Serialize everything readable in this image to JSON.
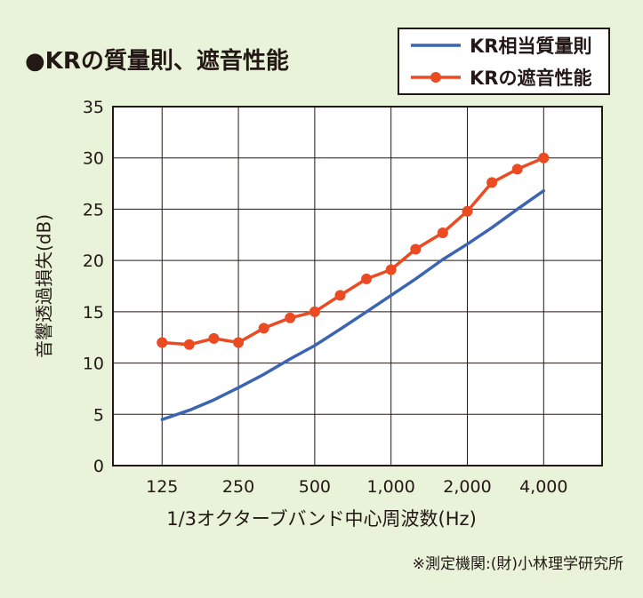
{
  "title": "●KRの質量則、遮音性能",
  "note": "※測定機関:(財)小林理学研究所",
  "colors": {
    "background": "#e9f3d9",
    "series_blue": "#3b64b3",
    "series_red": "#ea4b23"
  },
  "chart_data": {
    "type": "line",
    "xlabel": "1/3オクターブバンド中心周波数(Hz)",
    "ylabel": "音響透過損失(dB)",
    "x_scale": "log",
    "xlim": [
      80,
      6800
    ],
    "ylim": [
      0,
      35
    ],
    "yticks": [
      0,
      5,
      10,
      15,
      20,
      25,
      30,
      35
    ],
    "xticks": [
      125,
      250,
      500,
      1000,
      2000,
      4000
    ],
    "xtick_labels": [
      "125",
      "250",
      "500",
      "1,000",
      "2,000",
      "4,000"
    ],
    "grid": true,
    "legend_position": "top-right",
    "series": [
      {
        "name": "KR相当質量則",
        "color": "#3b64b3",
        "marker": false,
        "x": [
          125,
          160,
          200,
          250,
          315,
          400,
          500,
          630,
          800,
          1000,
          1250,
          1600,
          2000,
          2500,
          3150,
          4000
        ],
        "values": [
          4.5,
          5.4,
          6.4,
          7.6,
          8.9,
          10.4,
          11.7,
          13.3,
          15.0,
          16.6,
          18.2,
          20.1,
          21.6,
          23.2,
          25.0,
          26.8
        ]
      },
      {
        "name": "KRの遮音性能",
        "color": "#ea4b23",
        "marker": true,
        "x": [
          125,
          160,
          200,
          250,
          315,
          400,
          500,
          630,
          800,
          1000,
          1250,
          1600,
          2000,
          2500,
          3150,
          4000
        ],
        "values": [
          12.0,
          11.8,
          12.4,
          12.0,
          13.4,
          14.4,
          15.0,
          16.6,
          18.2,
          19.1,
          21.1,
          22.7,
          24.8,
          27.6,
          28.9,
          30.0
        ]
      }
    ]
  }
}
